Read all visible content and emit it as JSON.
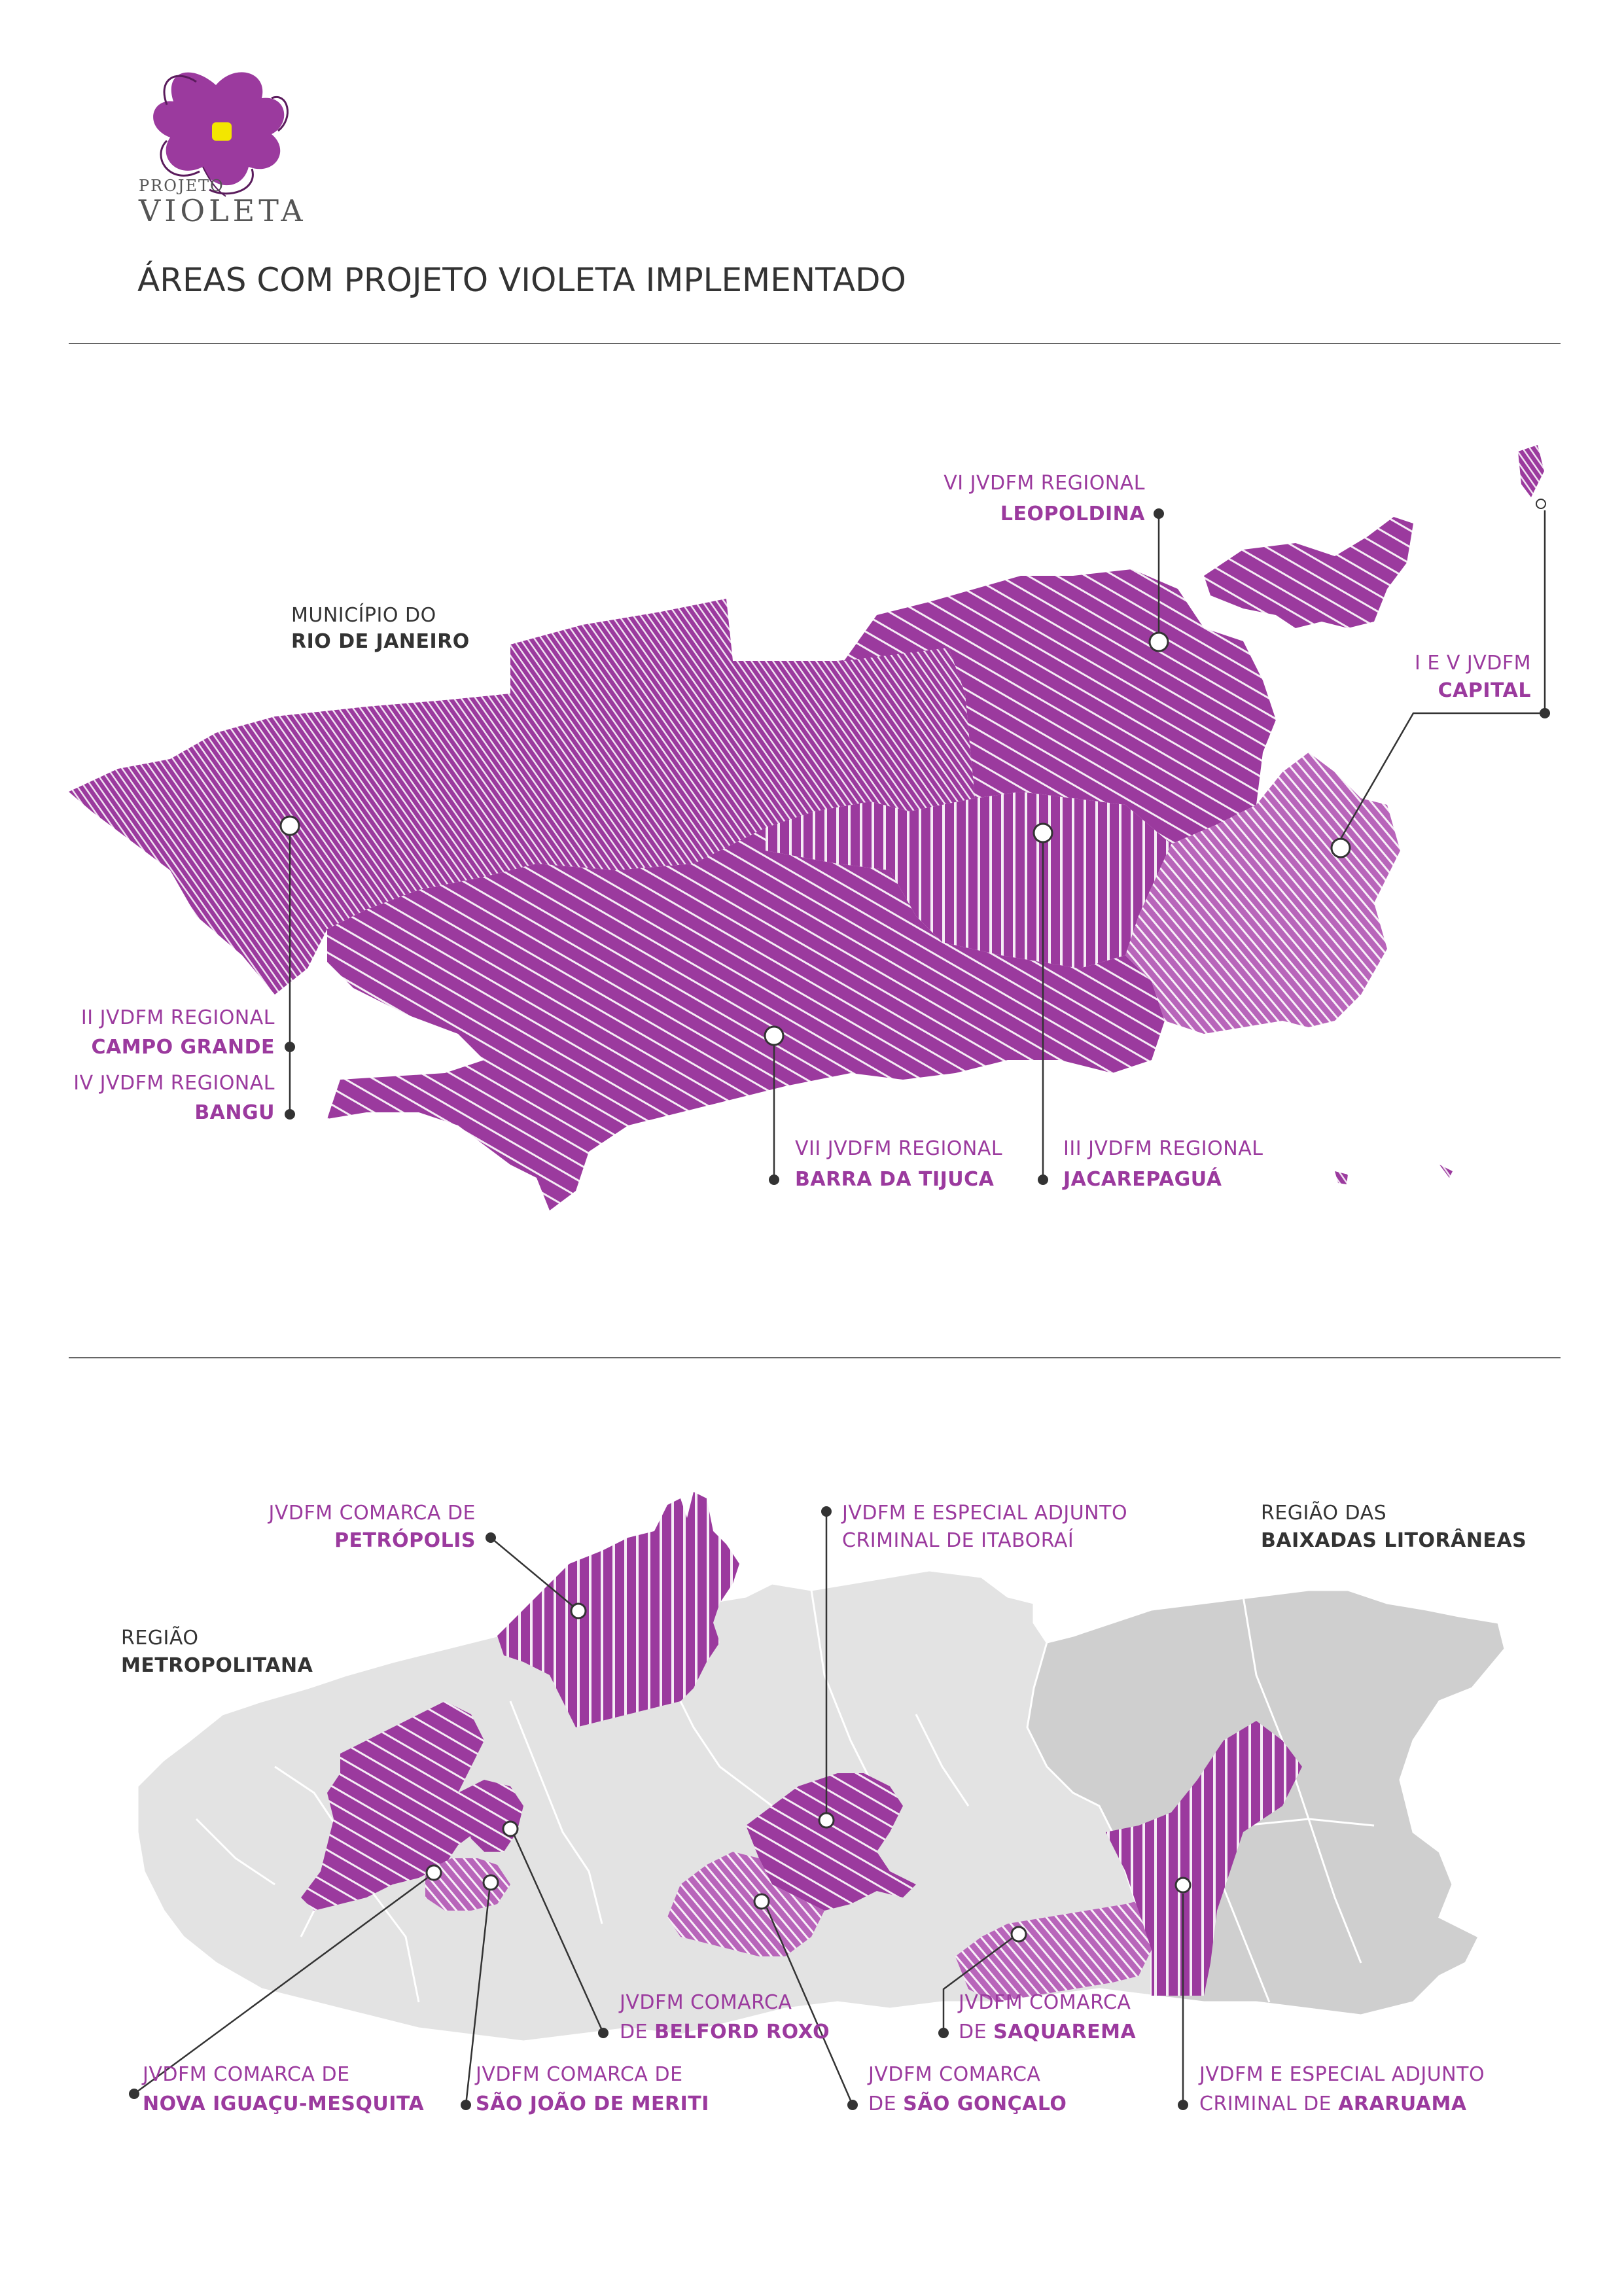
{
  "logo": {
    "line1": "PROJETO",
    "line2": "VIOLETA"
  },
  "title": "ÁREAS COM PROJETO VIOLETA IMPLEMENTADO",
  "colors": {
    "purple": "#9b3a9e",
    "purple_light": "#c58bc8",
    "gray": "#e3e3e3",
    "gray_dark": "#cfcfcf",
    "text": "#333333",
    "logo_yellow": "#f3e600"
  },
  "map1": {
    "municipio": {
      "line1": "MUNICÍPIO DO",
      "line2": "RIO DE JANEIRO"
    },
    "labels": [
      {
        "id": "leopoldina",
        "line1_plain": "VI JVDFM",
        "line1_rest": " REGIONAL",
        "line2": "LEOPOLDINA"
      },
      {
        "id": "capital",
        "line1_plain": "I E V JVDFM",
        "line1_rest": "",
        "line2": "CAPITAL"
      },
      {
        "id": "campo-grande",
        "line1_plain": "II JVDFM",
        "line1_rest": " REGIONAL",
        "line2": "CAMPO GRANDE"
      },
      {
        "id": "bangu",
        "line1_plain": "IV JVDFM",
        "line1_rest": " REGIONAL",
        "line2": "BANGU"
      },
      {
        "id": "barra",
        "line1_plain": "VII JVDFM",
        "line1_rest": " REGIONAL",
        "line2": "BARRA DA TIJUCA"
      },
      {
        "id": "jacarepagua",
        "line1_plain": "III JVDFM",
        "line1_rest": " REGIONAL",
        "line2": "JACAREPAGUÁ"
      }
    ]
  },
  "map2": {
    "regiao_metropolitana": {
      "line1": "REGIÃO",
      "line2": "METROPOLITANA"
    },
    "regiao_baixadas": {
      "line1": "REGIÃO DAS",
      "line2": "BAIXADAS LITORÂNEAS"
    },
    "labels": [
      {
        "id": "petropolis",
        "line1": "JVDFM COMARCA DE",
        "line2": "PETRÓPOLIS"
      },
      {
        "id": "itaborai",
        "line1": "JVDFM E ESPECIAL ADJUNTO",
        "line2": "CRIMINAL DE ITABORAÍ"
      },
      {
        "id": "belford-roxo",
        "line1": "JVDFM COMARCA",
        "line2_pre": "DE ",
        "line2": "BELFORD ROXO"
      },
      {
        "id": "saquarema",
        "line1": "JVDFM COMARCA",
        "line2_pre": "DE ",
        "line2": "SAQUAREMA"
      },
      {
        "id": "nova-iguacu",
        "line1": "JVDFM COMARCA DE",
        "line2": "NOVA IGUAÇU-MESQUITA"
      },
      {
        "id": "sao-joao",
        "line1": "JVDFM COMARCA DE",
        "line2": "SÃO JOÃO DE MERITI"
      },
      {
        "id": "sao-goncalo",
        "line1": "JVDFM COMARCA",
        "line2_pre": "DE ",
        "line2": "SÃO GONÇALO"
      },
      {
        "id": "araruama",
        "line1": "JVDFM E ESPECIAL ADJUNTO",
        "line2_pre": "CRIMINAL DE ",
        "line2": "ARARUAMA"
      }
    ]
  }
}
